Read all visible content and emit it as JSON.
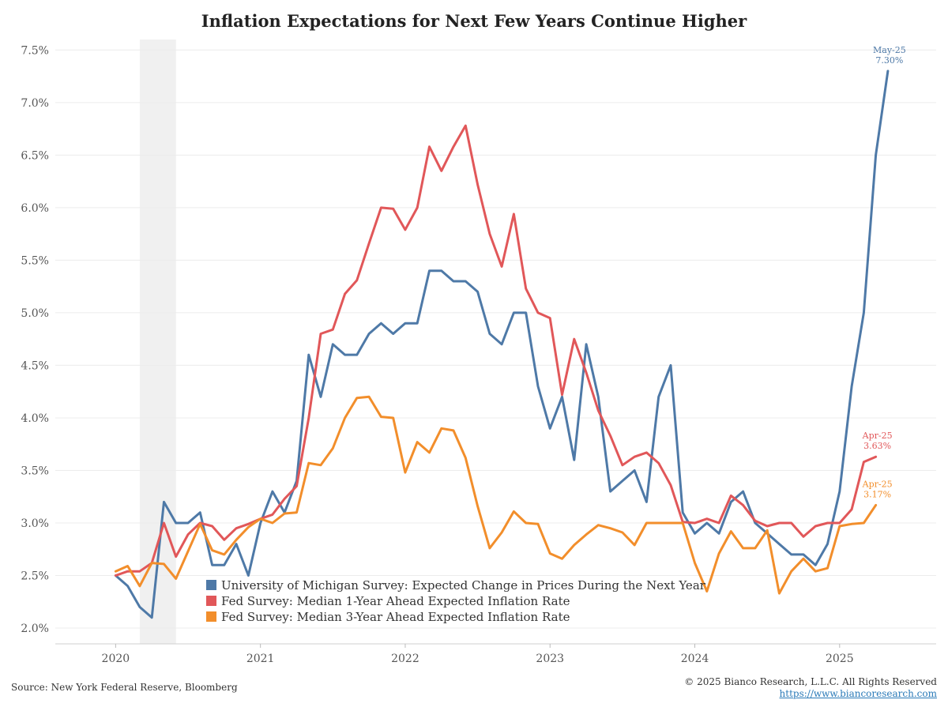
{
  "chart_data": {
    "type": "line",
    "title": "Inflation Expectations for Next Few Years Continue Higher",
    "y_ticks": [
      "2.0%",
      "2.5%",
      "3.0%",
      "3.5%",
      "4.0%",
      "4.5%",
      "5.0%",
      "5.5%",
      "6.0%",
      "6.5%",
      "7.0%",
      "7.5%"
    ],
    "y_tick_values": [
      2.0,
      2.5,
      3.0,
      3.5,
      4.0,
      4.5,
      5.0,
      5.5,
      6.0,
      6.5,
      7.0,
      7.5
    ],
    "ylim": [
      1.85,
      7.6
    ],
    "x_ticks": [
      "2020",
      "2021",
      "2022",
      "2023",
      "2024",
      "2025"
    ],
    "x_tick_values": [
      "2020-01",
      "2021-01",
      "2022-01",
      "2023-01",
      "2024-01",
      "2025-01"
    ],
    "xlim": [
      "2019-08",
      "2025-09"
    ],
    "recession_band": {
      "start": "2020-03",
      "end": "2020-06",
      "color": "#f0f0f0"
    },
    "grid": "horizontal",
    "legend_position": "bottom-center",
    "dates": [
      "2020-01",
      "2020-02",
      "2020-03",
      "2020-04",
      "2020-05",
      "2020-06",
      "2020-07",
      "2020-08",
      "2020-09",
      "2020-10",
      "2020-11",
      "2020-12",
      "2021-01",
      "2021-02",
      "2021-03",
      "2021-04",
      "2021-05",
      "2021-06",
      "2021-07",
      "2021-08",
      "2021-09",
      "2021-10",
      "2021-11",
      "2021-12",
      "2022-01",
      "2022-02",
      "2022-03",
      "2022-04",
      "2022-05",
      "2022-06",
      "2022-07",
      "2022-08",
      "2022-09",
      "2022-10",
      "2022-11",
      "2022-12",
      "2023-01",
      "2023-02",
      "2023-03",
      "2023-04",
      "2023-05",
      "2023-06",
      "2023-07",
      "2023-08",
      "2023-09",
      "2023-10",
      "2023-11",
      "2023-12",
      "2024-01",
      "2024-02",
      "2024-03",
      "2024-04",
      "2024-05",
      "2024-06",
      "2024-07",
      "2024-08",
      "2024-09",
      "2024-10",
      "2024-11",
      "2024-12",
      "2025-01",
      "2025-02",
      "2025-03",
      "2025-04",
      "2025-05"
    ],
    "series": [
      {
        "name": "University of Michigan Survey: Expected Change in Prices During the Next Year",
        "color": "#4e79a7",
        "values": [
          2.5,
          2.4,
          2.2,
          2.1,
          3.2,
          3.0,
          3.0,
          3.1,
          2.6,
          2.6,
          2.8,
          2.5,
          3.0,
          3.3,
          3.1,
          3.4,
          4.6,
          4.2,
          4.7,
          4.6,
          4.6,
          4.8,
          4.9,
          4.8,
          4.9,
          4.9,
          5.4,
          5.4,
          5.3,
          5.3,
          5.2,
          4.8,
          4.7,
          5.0,
          5.0,
          4.3,
          3.9,
          4.2,
          3.6,
          4.7,
          4.2,
          3.3,
          3.4,
          3.5,
          3.2,
          4.2,
          4.5,
          3.1,
          2.9,
          3.0,
          2.9,
          3.2,
          3.3,
          3.0,
          2.9,
          2.8,
          2.7,
          2.7,
          2.6,
          2.8,
          3.3,
          4.3,
          5.0,
          6.5,
          7.3
        ]
      },
      {
        "name": "Fed Survey: Median 1-Year Ahead Expected Inflation Rate",
        "color": "#e15759",
        "values": [
          2.5,
          2.54,
          2.54,
          2.62,
          3.0,
          2.68,
          2.89,
          3.0,
          2.97,
          2.84,
          2.95,
          2.99,
          3.04,
          3.08,
          3.23,
          3.35,
          4.0,
          4.8,
          4.84,
          5.18,
          5.31,
          5.66,
          6.0,
          5.99,
          5.79,
          6.0,
          6.58,
          6.35,
          6.58,
          6.78,
          6.22,
          5.75,
          5.44,
          5.94,
          5.23,
          5.0,
          4.95,
          4.22,
          4.75,
          4.43,
          4.07,
          3.83,
          3.55,
          3.63,
          3.67,
          3.57,
          3.36,
          3.01,
          3.0,
          3.04,
          3.0,
          3.26,
          3.17,
          3.02,
          2.97,
          3.0,
          3.0,
          2.87,
          2.97,
          3.0,
          3.0,
          3.13,
          3.58,
          3.63,
          null
        ]
      },
      {
        "name": "Fed Survey: Median 3-Year Ahead Expected Inflation Rate",
        "color": "#f28e2b",
        "values": [
          2.54,
          2.59,
          2.4,
          2.62,
          2.61,
          2.47,
          2.73,
          2.99,
          2.74,
          2.7,
          2.84,
          2.96,
          3.04,
          3.0,
          3.09,
          3.1,
          3.57,
          3.55,
          3.71,
          4.0,
          4.19,
          4.2,
          4.01,
          4.0,
          3.48,
          3.77,
          3.67,
          3.9,
          3.88,
          3.62,
          3.16,
          2.76,
          2.91,
          3.11,
          3.0,
          2.99,
          2.71,
          2.66,
          2.79,
          2.89,
          2.98,
          2.95,
          2.91,
          2.79,
          3.0,
          3.0,
          3.0,
          3.0,
          2.62,
          2.35,
          2.71,
          2.92,
          2.76,
          2.76,
          2.93,
          2.33,
          2.54,
          2.66,
          2.54,
          2.57,
          2.97,
          2.99,
          3.0,
          3.17,
          null
        ]
      }
    ],
    "annotations": [
      {
        "series": 0,
        "date": "2025-05",
        "label_top": "May-25",
        "label_bottom": "7.30%"
      },
      {
        "series": 1,
        "date": "2025-04",
        "label_top": "Apr-25",
        "label_bottom": "3.63%"
      },
      {
        "series": 2,
        "date": "2025-04",
        "label_top": "Apr-25",
        "label_bottom": "3.17%"
      }
    ]
  },
  "footer": {
    "source": "Source: New York Federal Reserve, Bloomberg",
    "copyright": "© 2025 Bianco Research, L.L.C. All Rights Reserved",
    "url": "https://www.biancoresearch.com"
  }
}
